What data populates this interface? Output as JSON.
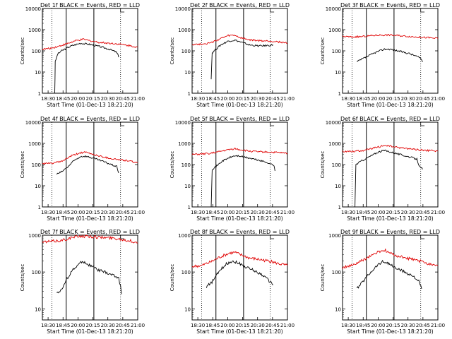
{
  "colors": {
    "events": "#000000",
    "lld": "#e00000",
    "axis": "#000000"
  },
  "chart_data": [
    {
      "type": "line",
      "title": "Det 1f BLACK = Events, RED = LLD",
      "xlabel": "Start Time (01-Dec-13 18:21:20)",
      "ylabel": "Counts/sec",
      "x_ticks": [
        "18:30",
        "18:45",
        "20:00",
        "20:15",
        "20:30",
        "20:45",
        "21:00"
      ],
      "y_ticks": [
        "1",
        "10",
        "100",
        "1000",
        "10000"
      ],
      "ylim": [
        1,
        10000
      ],
      "yscale": "log",
      "series": [
        {
          "name": "Events",
          "points": [
            [
              0.13,
              1
            ],
            [
              0.135,
              30
            ],
            [
              0.16,
              70
            ],
            [
              0.2,
              100
            ],
            [
              0.3,
              170
            ],
            [
              0.4,
              230
            ],
            [
              0.5,
              200
            ],
            [
              0.6,
              160
            ],
            [
              0.7,
              120
            ],
            [
              0.77,
              90
            ],
            [
              0.79,
              70
            ],
            [
              0.8,
              50
            ]
          ]
        },
        {
          "name": "LLD",
          "points": [
            [
              0,
              120
            ],
            [
              0.08,
              130
            ],
            [
              0.16,
              160
            ],
            [
              0.25,
              210
            ],
            [
              0.35,
              300
            ],
            [
              0.43,
              350
            ],
            [
              0.5,
              300
            ],
            [
              0.6,
              250
            ],
            [
              0.7,
              230
            ],
            [
              0.8,
              210
            ],
            [
              0.9,
              180
            ],
            [
              1.0,
              150
            ]
          ]
        }
      ]
    },
    {
      "type": "line",
      "title": "Det 2f BLACK = Events, RED = LLD",
      "xlabel": "Start Time (01-Dec-13 18:21:20)",
      "ylabel": "Counts/sec",
      "x_ticks": [
        "18:30",
        "18:45",
        "20:00",
        "20:15",
        "20:30",
        "20:45",
        "21:00"
      ],
      "y_ticks": [
        "1",
        "10",
        "100",
        "1000",
        "10000"
      ],
      "ylim": [
        1,
        10000
      ],
      "yscale": "log",
      "series": [
        {
          "name": "Events",
          "points": [
            [
              0.2,
              5
            ],
            [
              0.21,
              80
            ],
            [
              0.25,
              120
            ],
            [
              0.3,
              190
            ],
            [
              0.38,
              290
            ],
            [
              0.45,
              320
            ],
            [
              0.5,
              270
            ],
            [
              0.6,
              190
            ],
            [
              0.7,
              170
            ],
            [
              0.8,
              180
            ],
            [
              0.85,
              190
            ]
          ]
        },
        {
          "name": "LLD",
          "points": [
            [
              0,
              200
            ],
            [
              0.1,
              210
            ],
            [
              0.2,
              240
            ],
            [
              0.3,
              380
            ],
            [
              0.38,
              520
            ],
            [
              0.45,
              540
            ],
            [
              0.5,
              420
            ],
            [
              0.6,
              330
            ],
            [
              0.7,
              300
            ],
            [
              0.8,
              290
            ],
            [
              0.9,
              270
            ],
            [
              1.0,
              230
            ]
          ]
        }
      ]
    },
    {
      "type": "line",
      "title": "Det 3f BLACK = Events, RED = LLD",
      "xlabel": "Start Time (01-Dec-13 18:21:20)",
      "ylabel": "Counts/sec",
      "x_ticks": [
        "18:30",
        "18:45",
        "20:00",
        "20:15",
        "20:30",
        "20:45",
        "21:00"
      ],
      "y_ticks": [
        "1",
        "10",
        "100",
        "1000",
        "10000"
      ],
      "ylim": [
        1,
        10000
      ],
      "yscale": "log",
      "series": [
        {
          "name": "Events",
          "points": [
            [
              0.15,
              30
            ],
            [
              0.2,
              40
            ],
            [
              0.28,
              60
            ],
            [
              0.36,
              90
            ],
            [
              0.44,
              120
            ],
            [
              0.5,
              120
            ],
            [
              0.6,
              95
            ],
            [
              0.7,
              75
            ],
            [
              0.78,
              55
            ],
            [
              0.82,
              45
            ],
            [
              0.84,
              30
            ]
          ]
        },
        {
          "name": "LLD",
          "points": [
            [
              0,
              480
            ],
            [
              0.1,
              450
            ],
            [
              0.2,
              470
            ],
            [
              0.3,
              520
            ],
            [
              0.4,
              560
            ],
            [
              0.5,
              560
            ],
            [
              0.6,
              520
            ],
            [
              0.7,
              480
            ],
            [
              0.8,
              440
            ],
            [
              0.9,
              420
            ],
            [
              1.0,
              380
            ]
          ]
        }
      ]
    },
    {
      "type": "line",
      "title": "Det 4f BLACK = Events, RED = LLD",
      "xlabel": "Start Time (01-Dec-13 18:21:20)",
      "ylabel": "Counts/sec",
      "x_ticks": [
        "18:30",
        "18:45",
        "20:00",
        "20:15",
        "20:30",
        "20:45",
        "21:00"
      ],
      "y_ticks": [
        "1",
        "10",
        "100",
        "1000",
        "10000"
      ],
      "ylim": [
        1,
        10000
      ],
      "yscale": "log",
      "series": [
        {
          "name": "Events",
          "points": [
            [
              0.15,
              35
            ],
            [
              0.2,
              45
            ],
            [
              0.27,
              80
            ],
            [
              0.33,
              150
            ],
            [
              0.4,
              240
            ],
            [
              0.45,
              250
            ],
            [
              0.5,
              220
            ],
            [
              0.6,
              160
            ],
            [
              0.7,
              110
            ],
            [
              0.78,
              80
            ],
            [
              0.8,
              40
            ]
          ]
        },
        {
          "name": "LLD",
          "points": [
            [
              0,
              110
            ],
            [
              0.1,
              115
            ],
            [
              0.2,
              140
            ],
            [
              0.3,
              250
            ],
            [
              0.4,
              360
            ],
            [
              0.45,
              380
            ],
            [
              0.5,
              330
            ],
            [
              0.6,
              250
            ],
            [
              0.7,
              200
            ],
            [
              0.8,
              170
            ],
            [
              0.9,
              150
            ],
            [
              1.0,
              120
            ]
          ]
        }
      ]
    },
    {
      "type": "line",
      "title": "Det 5f BLACK = Events, RED = LLD",
      "xlabel": "Start Time (01-Dec-13 18:21:20)",
      "ylabel": "Counts/sec",
      "x_ticks": [
        "18:30",
        "18:45",
        "20:00",
        "20:15",
        "20:30",
        "20:45",
        "21:00"
      ],
      "y_ticks": [
        "1",
        "10",
        "100",
        "1000",
        "10000"
      ],
      "ylim": [
        1,
        10000
      ],
      "yscale": "log",
      "series": [
        {
          "name": "Events",
          "points": [
            [
              0.2,
              1
            ],
            [
              0.21,
              60
            ],
            [
              0.25,
              80
            ],
            [
              0.32,
              150
            ],
            [
              0.4,
              220
            ],
            [
              0.45,
              260
            ],
            [
              0.5,
              250
            ],
            [
              0.6,
              200
            ],
            [
              0.7,
              160
            ],
            [
              0.8,
              120
            ],
            [
              0.86,
              90
            ],
            [
              0.87,
              50
            ]
          ]
        },
        {
          "name": "LLD",
          "points": [
            [
              0,
              300
            ],
            [
              0.1,
              310
            ],
            [
              0.2,
              340
            ],
            [
              0.3,
              420
            ],
            [
              0.4,
              520
            ],
            [
              0.45,
              560
            ],
            [
              0.5,
              510
            ],
            [
              0.6,
              430
            ],
            [
              0.7,
              400
            ],
            [
              0.8,
              390
            ],
            [
              0.9,
              370
            ],
            [
              1.0,
              340
            ]
          ]
        }
      ]
    },
    {
      "type": "line",
      "title": "Det 6f BLACK = Events, RED = LLD",
      "xlabel": "Start Time (01-Dec-13 18:21:20)",
      "ylabel": "Counts/sec",
      "x_ticks": [
        "18:30",
        "18:45",
        "20:00",
        "20:15",
        "20:30",
        "20:45",
        "21:00"
      ],
      "y_ticks": [
        "1",
        "10",
        "100",
        "1000",
        "10000"
      ],
      "ylim": [
        1,
        10000
      ],
      "yscale": "log",
      "series": [
        {
          "name": "Events",
          "points": [
            [
              0.13,
              1
            ],
            [
              0.14,
              100
            ],
            [
              0.2,
              150
            ],
            [
              0.3,
              260
            ],
            [
              0.38,
              400
            ],
            [
              0.44,
              460
            ],
            [
              0.5,
              400
            ],
            [
              0.6,
              300
            ],
            [
              0.7,
              230
            ],
            [
              0.78,
              180
            ],
            [
              0.8,
              100
            ],
            [
              0.84,
              60
            ]
          ]
        },
        {
          "name": "LLD",
          "points": [
            [
              0,
              420
            ],
            [
              0.1,
              420
            ],
            [
              0.2,
              450
            ],
            [
              0.3,
              550
            ],
            [
              0.4,
              720
            ],
            [
              0.45,
              800
            ],
            [
              0.5,
              730
            ],
            [
              0.6,
              620
            ],
            [
              0.7,
              560
            ],
            [
              0.8,
              490
            ],
            [
              0.9,
              460
            ],
            [
              1.0,
              430
            ]
          ]
        }
      ]
    },
    {
      "type": "line",
      "title": "Det 7f BLACK = Events, RED = LLD",
      "xlabel": "Start Time (01-Dec-13 18:21:20)",
      "ylabel": "Counts/sec",
      "x_ticks": [
        "18:30",
        "18:45",
        "20:00",
        "20:15",
        "20:30",
        "20:45",
        "21:00"
      ],
      "y_ticks": [
        "10",
        "100",
        "1000"
      ],
      "ylim": [
        5,
        1000
      ],
      "yscale": "log",
      "series": [
        {
          "name": "Events",
          "points": [
            [
              0.15,
              28
            ],
            [
              0.2,
              32
            ],
            [
              0.25,
              60
            ],
            [
              0.3,
              100
            ],
            [
              0.38,
              160
            ],
            [
              0.42,
              200
            ],
            [
              0.46,
              170
            ],
            [
              0.52,
              140
            ],
            [
              0.6,
              110
            ],
            [
              0.7,
              90
            ],
            [
              0.8,
              70
            ],
            [
              0.82,
              40
            ],
            [
              0.83,
              25
            ]
          ]
        },
        {
          "name": "LLD",
          "points": [
            [
              0,
              650
            ],
            [
              0.1,
              680
            ],
            [
              0.2,
              720
            ],
            [
              0.3,
              850
            ],
            [
              0.4,
              950
            ],
            [
              0.5,
              920
            ],
            [
              0.6,
              880
            ],
            [
              0.7,
              850
            ],
            [
              0.8,
              800
            ],
            [
              0.9,
              720
            ],
            [
              1.0,
              620
            ]
          ]
        }
      ]
    },
    {
      "type": "line",
      "title": "Det 8f BLACK = Events, RED = LLD",
      "xlabel": "Start Time (01-Dec-13 18:21:20)",
      "ylabel": "Counts/sec",
      "x_ticks": [
        "18:30",
        "18:45",
        "20:00",
        "20:15",
        "20:30",
        "20:45",
        "21:00"
      ],
      "y_ticks": [
        "10",
        "100",
        "1000"
      ],
      "ylim": [
        5,
        1000
      ],
      "yscale": "log",
      "series": [
        {
          "name": "Events",
          "points": [
            [
              0.15,
              40
            ],
            [
              0.2,
              50
            ],
            [
              0.28,
              100
            ],
            [
              0.35,
              160
            ],
            [
              0.42,
              200
            ],
            [
              0.48,
              180
            ],
            [
              0.55,
              140
            ],
            [
              0.65,
              110
            ],
            [
              0.75,
              80
            ],
            [
              0.8,
              60
            ],
            [
              0.85,
              45
            ]
          ]
        },
        {
          "name": "LLD",
          "points": [
            [
              0,
              140
            ],
            [
              0.1,
              150
            ],
            [
              0.2,
              190
            ],
            [
              0.3,
              260
            ],
            [
              0.4,
              330
            ],
            [
              0.45,
              340
            ],
            [
              0.5,
              300
            ],
            [
              0.6,
              240
            ],
            [
              0.7,
              220
            ],
            [
              0.8,
              200
            ],
            [
              0.9,
              170
            ],
            [
              1.0,
              150
            ]
          ]
        }
      ]
    },
    {
      "type": "line",
      "title": "Det 9f BLACK = Events, RED = LLD",
      "xlabel": "Start Time (01-Dec-13 18:21:20)",
      "ylabel": "Counts/sec",
      "x_ticks": [
        "18:30",
        "18:45",
        "20:00",
        "20:15",
        "20:30",
        "20:45",
        "21:00"
      ],
      "y_ticks": [
        "10",
        "100",
        "1000"
      ],
      "ylim": [
        5,
        1000
      ],
      "yscale": "log",
      "series": [
        {
          "name": "Events",
          "points": [
            [
              0.15,
              35
            ],
            [
              0.2,
              50
            ],
            [
              0.28,
              90
            ],
            [
              0.36,
              150
            ],
            [
              0.42,
              190
            ],
            [
              0.47,
              180
            ],
            [
              0.55,
              130
            ],
            [
              0.65,
              100
            ],
            [
              0.75,
              75
            ],
            [
              0.8,
              55
            ],
            [
              0.83,
              35
            ]
          ]
        },
        {
          "name": "LLD",
          "points": [
            [
              0,
              130
            ],
            [
              0.1,
              150
            ],
            [
              0.2,
              200
            ],
            [
              0.3,
              280
            ],
            [
              0.4,
              370
            ],
            [
              0.45,
              380
            ],
            [
              0.5,
              320
            ],
            [
              0.6,
              260
            ],
            [
              0.7,
              230
            ],
            [
              0.8,
              200
            ],
            [
              0.9,
              170
            ],
            [
              1.0,
              150
            ]
          ]
        }
      ]
    }
  ]
}
